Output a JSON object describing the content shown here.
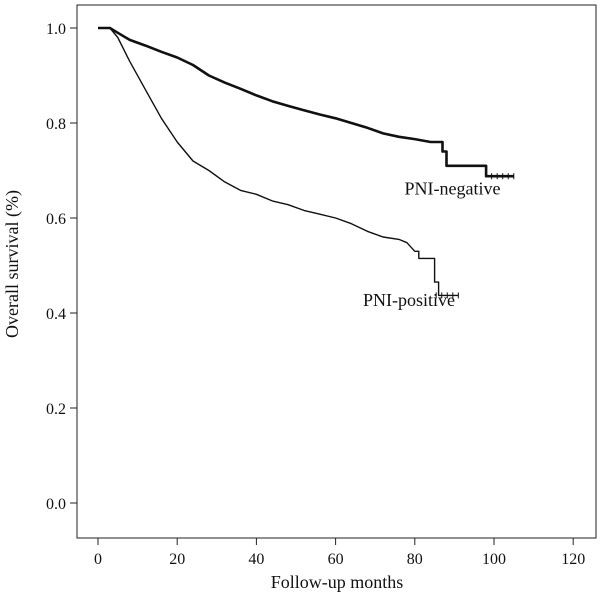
{
  "chart_data": {
    "type": "line",
    "title": "",
    "xlabel": "Follow-up months",
    "ylabel": "Overall survival (%)",
    "xlim": [
      0,
      120
    ],
    "ylim": [
      0,
      1.0
    ],
    "x_ticks": [
      0,
      20,
      40,
      60,
      80,
      100,
      120
    ],
    "x_tick_labels": [
      "0",
      "20",
      "40",
      "60",
      "80",
      "100",
      "120"
    ],
    "y_ticks": [
      0.0,
      0.2,
      0.4,
      0.6,
      0.8,
      1.0
    ],
    "y_tick_labels": [
      "0.0",
      "0.2",
      "0.4",
      "0.6",
      "0.8",
      "1.0"
    ],
    "grid": false,
    "legend": "none",
    "color": "#111111",
    "series": [
      {
        "name": "PNI-negative",
        "label_month": 87,
        "label_survival": 0.65,
        "points": [
          [
            0,
            1.0
          ],
          [
            3,
            1.0
          ],
          [
            5,
            0.99
          ],
          [
            8,
            0.975
          ],
          [
            12,
            0.963
          ],
          [
            16,
            0.95
          ],
          [
            20,
            0.938
          ],
          [
            24,
            0.922
          ],
          [
            28,
            0.9
          ],
          [
            32,
            0.885
          ],
          [
            36,
            0.872
          ],
          [
            40,
            0.858
          ],
          [
            44,
            0.846
          ],
          [
            48,
            0.836
          ],
          [
            52,
            0.827
          ],
          [
            56,
            0.818
          ],
          [
            60,
            0.81
          ],
          [
            64,
            0.8
          ],
          [
            68,
            0.79
          ],
          [
            72,
            0.778
          ],
          [
            76,
            0.771
          ],
          [
            80,
            0.766
          ],
          [
            84,
            0.76
          ],
          [
            87,
            0.76
          ],
          [
            87,
            0.74
          ],
          [
            88,
            0.74
          ],
          [
            88,
            0.71
          ],
          [
            98,
            0.71
          ],
          [
            98,
            0.688
          ],
          [
            105,
            0.688
          ]
        ]
      },
      {
        "name": "PNI-positive",
        "label_month": 76,
        "label_survival": 0.415,
        "points": [
          [
            0,
            1.0
          ],
          [
            3,
            1.0
          ],
          [
            5,
            0.98
          ],
          [
            8,
            0.93
          ],
          [
            12,
            0.87
          ],
          [
            16,
            0.81
          ],
          [
            20,
            0.76
          ],
          [
            24,
            0.72
          ],
          [
            28,
            0.7
          ],
          [
            32,
            0.676
          ],
          [
            36,
            0.658
          ],
          [
            40,
            0.65
          ],
          [
            44,
            0.636
          ],
          [
            48,
            0.628
          ],
          [
            52,
            0.616
          ],
          [
            56,
            0.608
          ],
          [
            60,
            0.6
          ],
          [
            64,
            0.588
          ],
          [
            68,
            0.572
          ],
          [
            72,
            0.56
          ],
          [
            76,
            0.555
          ],
          [
            78,
            0.548
          ],
          [
            80,
            0.53
          ],
          [
            81,
            0.53
          ],
          [
            81,
            0.515
          ],
          [
            85,
            0.515
          ],
          [
            85,
            0.465
          ],
          [
            86,
            0.465
          ],
          [
            86,
            0.437
          ],
          [
            91,
            0.437
          ]
        ]
      }
    ]
  }
}
